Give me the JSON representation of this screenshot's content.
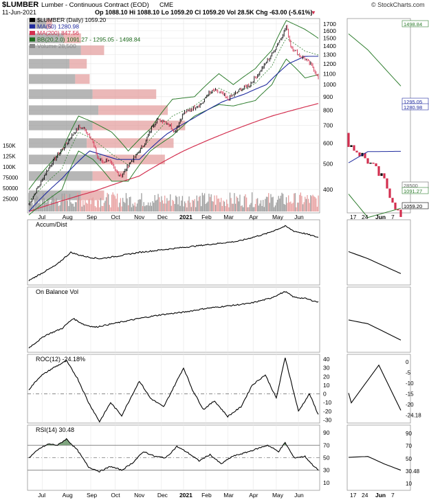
{
  "header": {
    "symbol": "$LUMBER",
    "description": "Lumber - Continuous Contract (EOD)",
    "exchange": "CME",
    "source": "© StockCharts.com",
    "date": "11-Jun-2021",
    "ohlc": "Op 1088.10  Hi 1088.10  Lo 1059.20  Cl 1059.20  Vol 28.5K  Chg -63.00 (-5.61%)",
    "ohlc_arrow": "▼"
  },
  "legend": [
    {
      "label": "$LUMBER (Daily) 1059.20",
      "color": "#000000"
    },
    {
      "label": "MA(50) 1280.98",
      "color": "#1f2a9e"
    },
    {
      "label": "MA(200) 847.56",
      "color": "#d32f4f"
    },
    {
      "label": "BB(20,2.0) 1091.27 - 1295.05 - 1498.84",
      "color": "#1e6b1e"
    },
    {
      "label": "Volume 28,500",
      "color": "#888888"
    }
  ],
  "panels": {
    "accum": "Accum/Dist",
    "obv": "On Balance Vol",
    "roc": "ROC(12) -24.18%",
    "rsi": "RSI(14) 30.48"
  },
  "colors": {
    "up": "#000000",
    "down": "#d32f4f",
    "ma50": "#1f2a9e",
    "ma200": "#d32f4f",
    "bb": "#2e7d2e",
    "volup": "#9e9e9e",
    "voldown": "#e8a0a0",
    "grid": "#e6e6e6",
    "vbp_grey": "#9e9e9e",
    "vbp_red": "#e39a9a",
    "rsi_fill": "#5f8f5f"
  },
  "chart_data": {
    "type": "line",
    "x_labels": [
      "Jul",
      "Aug",
      "Sep",
      "Oct",
      "Nov",
      "Dec",
      "2021",
      "Feb",
      "Mar",
      "Apr",
      "May",
      "Jun"
    ],
    "price_scale": {
      "type": "log",
      "ylim": [
        330,
        1760
      ],
      "ticks": [
        400,
        500,
        600,
        700,
        800,
        900,
        1000,
        1100,
        1200,
        1300,
        1400,
        1500,
        1600,
        1700
      ]
    },
    "volume_ticks": [
      "150K",
      "125K",
      "100K",
      "75000",
      "50000",
      "25000"
    ],
    "price_anchors": [
      [
        0,
        350
      ],
      [
        10,
        420
      ],
      [
        20,
        500
      ],
      [
        32,
        580
      ],
      [
        40,
        650
      ],
      [
        45,
        690
      ],
      [
        50,
        680
      ],
      [
        57,
        620
      ],
      [
        62,
        530
      ],
      [
        67,
        510
      ],
      [
        72,
        520
      ],
      [
        78,
        470
      ],
      [
        84,
        450
      ],
      [
        90,
        495
      ],
      [
        96,
        530
      ],
      [
        105,
        600
      ],
      [
        112,
        700
      ],
      [
        116,
        735
      ],
      [
        122,
        730
      ],
      [
        128,
        700
      ],
      [
        132,
        660
      ],
      [
        136,
        720
      ],
      [
        140,
        780
      ],
      [
        150,
        820
      ],
      [
        158,
        860
      ],
      [
        162,
        920
      ],
      [
        168,
        950
      ],
      [
        174,
        930
      ],
      [
        180,
        880
      ],
      [
        186,
        920
      ],
      [
        192,
        960
      ],
      [
        200,
        1000
      ],
      [
        208,
        1100
      ],
      [
        214,
        1200
      ],
      [
        220,
        1300
      ],
      [
        228,
        1500
      ],
      [
        233,
        1660
      ],
      [
        237,
        1400
      ],
      [
        244,
        1300
      ],
      [
        250,
        1250
      ],
      [
        256,
        1180
      ],
      [
        262,
        1059
      ]
    ],
    "ma50_anchors": [
      [
        0,
        330
      ],
      [
        30,
        440
      ],
      [
        55,
        560
      ],
      [
        80,
        520
      ],
      [
        100,
        520
      ],
      [
        125,
        650
      ],
      [
        150,
        750
      ],
      [
        175,
        860
      ],
      [
        195,
        920
      ],
      [
        215,
        1000
      ],
      [
        235,
        1200
      ],
      [
        250,
        1280
      ],
      [
        262,
        1281
      ]
    ],
    "ma200_anchors": [
      [
        0,
        330
      ],
      [
        60,
        395
      ],
      [
        100,
        450
      ],
      [
        140,
        560
      ],
      [
        180,
        660
      ],
      [
        220,
        760
      ],
      [
        262,
        848
      ]
    ],
    "bb_upper_anchors": [
      [
        0,
        400
      ],
      [
        30,
        560
      ],
      [
        45,
        760
      ],
      [
        58,
        720
      ],
      [
        75,
        660
      ],
      [
        90,
        560
      ],
      [
        110,
        680
      ],
      [
        130,
        880
      ],
      [
        150,
        900
      ],
      [
        172,
        1100
      ],
      [
        185,
        1000
      ],
      [
        205,
        1150
      ],
      [
        220,
        1350
      ],
      [
        233,
        1750
      ],
      [
        250,
        1620
      ],
      [
        262,
        1499
      ]
    ],
    "bb_lower_anchors": [
      [
        0,
        320
      ],
      [
        30,
        400
      ],
      [
        45,
        560
      ],
      [
        58,
        520
      ],
      [
        75,
        430
      ],
      [
        90,
        430
      ],
      [
        110,
        560
      ],
      [
        130,
        640
      ],
      [
        150,
        760
      ],
      [
        172,
        840
      ],
      [
        185,
        830
      ],
      [
        205,
        870
      ],
      [
        220,
        1000
      ],
      [
        233,
        1250
      ],
      [
        250,
        1060
      ],
      [
        262,
        1091
      ]
    ],
    "accum_dist_anchors": [
      [
        0,
        0.05
      ],
      [
        15,
        0.2
      ],
      [
        25,
        0.3
      ],
      [
        30,
        0.38
      ],
      [
        38,
        0.5
      ],
      [
        45,
        0.46
      ],
      [
        55,
        0.42
      ],
      [
        65,
        0.4
      ],
      [
        80,
        0.44
      ],
      [
        100,
        0.5
      ],
      [
        130,
        0.56
      ],
      [
        160,
        0.62
      ],
      [
        190,
        0.68
      ],
      [
        215,
        0.8
      ],
      [
        232,
        0.92
      ],
      [
        240,
        0.84
      ],
      [
        250,
        0.8
      ],
      [
        262,
        0.74
      ]
    ],
    "obv_anchors": [
      [
        0,
        0.05
      ],
      [
        15,
        0.25
      ],
      [
        30,
        0.36
      ],
      [
        40,
        0.52
      ],
      [
        50,
        0.42
      ],
      [
        60,
        0.38
      ],
      [
        80,
        0.45
      ],
      [
        100,
        0.52
      ],
      [
        120,
        0.58
      ],
      [
        140,
        0.62
      ],
      [
        160,
        0.68
      ],
      [
        180,
        0.72
      ],
      [
        200,
        0.76
      ],
      [
        218,
        0.84
      ],
      [
        232,
        0.95
      ],
      [
        240,
        0.86
      ],
      [
        250,
        0.84
      ],
      [
        262,
        0.78
      ]
    ],
    "roc": {
      "ylim": [
        -32,
        44
      ],
      "ticks": [
        40,
        30,
        20,
        10,
        0,
        -10,
        -20,
        -30
      ],
      "anchors": [
        [
          0,
          5
        ],
        [
          10,
          20
        ],
        [
          22,
          30
        ],
        [
          34,
          38
        ],
        [
          44,
          18
        ],
        [
          54,
          -10
        ],
        [
          64,
          -32
        ],
        [
          74,
          -10
        ],
        [
          84,
          -25
        ],
        [
          92,
          -5
        ],
        [
          100,
          15
        ],
        [
          110,
          -5
        ],
        [
          122,
          -15
        ],
        [
          130,
          5
        ],
        [
          140,
          30
        ],
        [
          148,
          5
        ],
        [
          158,
          -18
        ],
        [
          168,
          -8
        ],
        [
          180,
          -26
        ],
        [
          192,
          -15
        ],
        [
          202,
          10
        ],
        [
          214,
          22
        ],
        [
          224,
          -5
        ],
        [
          232,
          42
        ],
        [
          244,
          -20
        ],
        [
          254,
          0
        ],
        [
          262,
          -24
        ]
      ]
    },
    "rsi": {
      "ylim": [
        0,
        100
      ],
      "ticks": [
        90,
        70,
        50,
        30,
        10
      ],
      "anchors": [
        [
          0,
          50
        ],
        [
          10,
          65
        ],
        [
          18,
          72
        ],
        [
          26,
          70
        ],
        [
          34,
          80
        ],
        [
          44,
          62
        ],
        [
          54,
          35
        ],
        [
          64,
          28
        ],
        [
          74,
          36
        ],
        [
          84,
          30
        ],
        [
          94,
          42
        ],
        [
          104,
          60
        ],
        [
          114,
          52
        ],
        [
          124,
          50
        ],
        [
          134,
          68
        ],
        [
          144,
          58
        ],
        [
          154,
          45
        ],
        [
          164,
          55
        ],
        [
          174,
          40
        ],
        [
          184,
          52
        ],
        [
          196,
          58
        ],
        [
          206,
          64
        ],
        [
          216,
          70
        ],
        [
          226,
          60
        ],
        [
          232,
          74
        ],
        [
          240,
          50
        ],
        [
          250,
          52
        ],
        [
          256,
          40
        ],
        [
          262,
          30
        ]
      ]
    },
    "zoom": {
      "x_labels": [
        "17",
        "24",
        "Jun",
        "7"
      ],
      "price_ticks": [
        1100,
        1125,
        1150,
        1175,
        1200,
        1225,
        1250,
        1275,
        1300,
        1325,
        1350,
        1375,
        1400,
        1425,
        1450,
        1475
      ],
      "price_labels": [
        "1498.84",
        "1295.05",
        "1280.98",
        "28500",
        "1091.27",
        "1059.20"
      ],
      "accum_ticks": [],
      "roc_ticks": [
        "0",
        "-5",
        "-10",
        "-15",
        "-20",
        "-24.18"
      ],
      "rsi_ticks": [
        "90",
        "70",
        "50",
        "30.48",
        "10"
      ]
    }
  }
}
